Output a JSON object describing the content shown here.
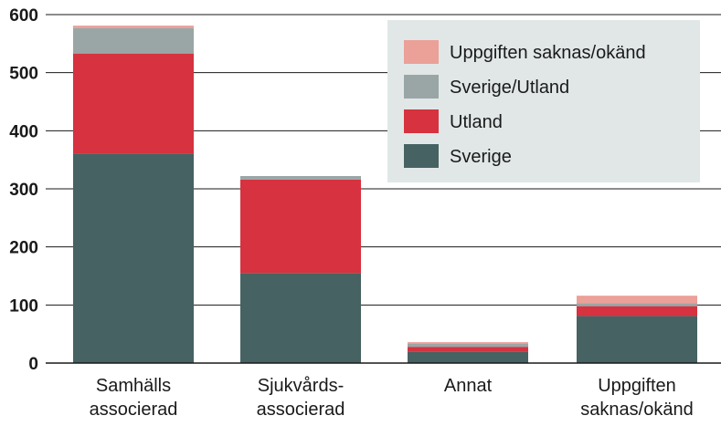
{
  "chart_data": {
    "type": "bar",
    "stacked": true,
    "categories": [
      [
        "Samhälls",
        "associerad"
      ],
      [
        "Sjukvårds-",
        "associerad"
      ],
      [
        "Annat"
      ],
      [
        "Uppgiften",
        "saknas/okänd"
      ]
    ],
    "series": [
      {
        "name": "Sverige",
        "color": "#466262",
        "values": [
          361,
          155,
          19,
          81
        ]
      },
      {
        "name": "Utland",
        "color": "#d6323f",
        "values": [
          172,
          161,
          9,
          17
        ]
      },
      {
        "name": "Sverige/Utland",
        "color": "#9aa6a6",
        "values": [
          44,
          6,
          5,
          5
        ]
      },
      {
        "name": "Uppgiften saknas/okänd",
        "color": "#eba098",
        "values": [
          4,
          0,
          3,
          13
        ]
      }
    ],
    "legend_order": [
      "Uppgiften saknas/okänd",
      "Sverige/Utland",
      "Utland",
      "Sverige"
    ],
    "yticks": [
      0,
      100,
      200,
      300,
      400,
      500,
      600
    ],
    "ylim": [
      0,
      600
    ],
    "grid": true,
    "legend_position": "top-right",
    "legend_background": "#e1e7e7"
  }
}
